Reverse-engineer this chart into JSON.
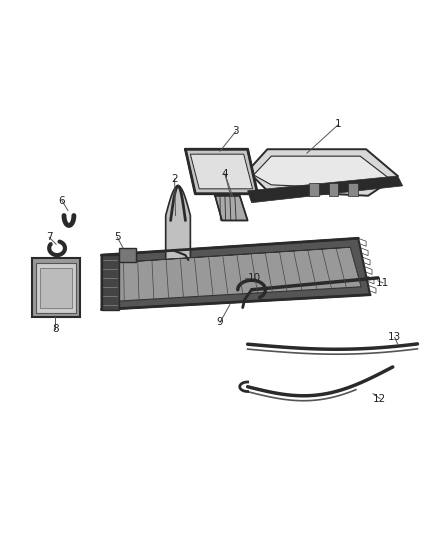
{
  "background_color": "#ffffff",
  "figsize": [
    4.38,
    5.33
  ],
  "dpi": 100,
  "line_color": "#555555",
  "text_color": "#222222",
  "part_color": "#2a2a2a",
  "font_size": 7.5
}
